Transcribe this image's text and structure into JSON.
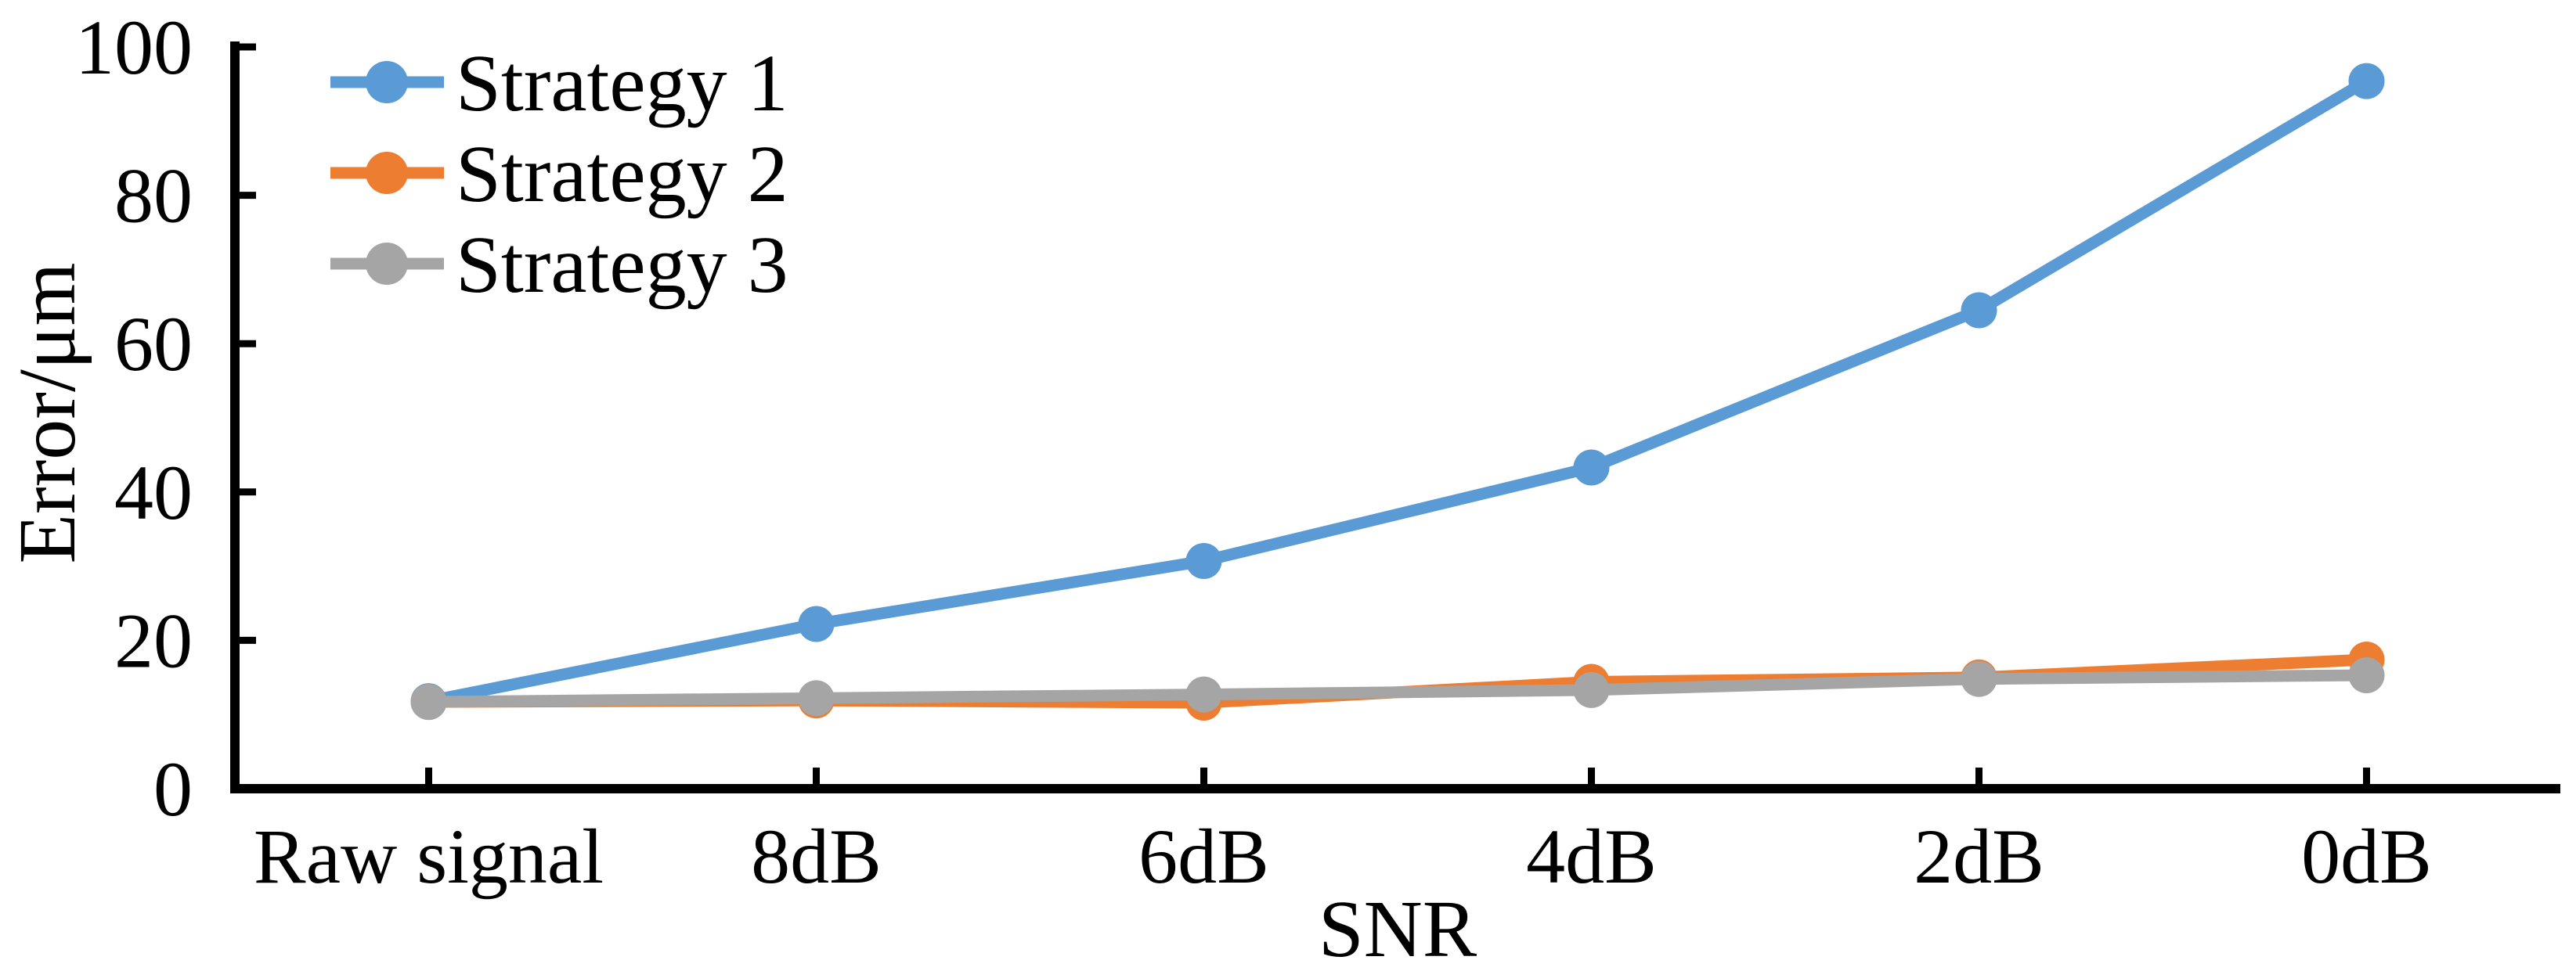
{
  "figure": {
    "description": "Line chart of positioning error versus signal-to-noise ratio for three strategies"
  },
  "chart_data": {
    "type": "line",
    "title": "",
    "xlabel": "SNR",
    "ylabel": "Error/μm",
    "categories": [
      "Raw signal",
      "8dB",
      "6dB",
      "4dB",
      "2dB",
      "0dB"
    ],
    "series": [
      {
        "name": "Strategy 1",
        "color": "#5B9BD5",
        "marker": "circle",
        "values": [
          11.8,
          22.2,
          30.7,
          43.3,
          64.5,
          95.4
        ]
      },
      {
        "name": "Strategy 2",
        "color": "#ED7D31",
        "marker": "circle",
        "values": [
          11.7,
          11.9,
          11.6,
          14.4,
          15.0,
          17.4
        ]
      },
      {
        "name": "Strategy 3",
        "color": "#A5A5A5",
        "marker": "circle",
        "values": [
          11.7,
          12.2,
          12.7,
          13.3,
          14.8,
          15.3
        ]
      }
    ],
    "ylim": [
      0,
      100
    ],
    "yticks": [
      0,
      20,
      40,
      60,
      80,
      100
    ],
    "grid": false,
    "legend_position": "top-left-inside",
    "axis_color": "#000000",
    "background_color": "#FFFFFF"
  }
}
